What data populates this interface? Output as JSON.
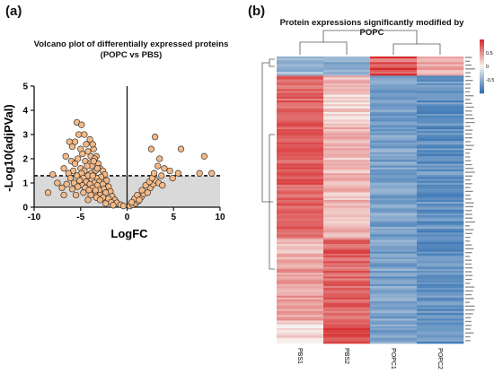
{
  "panel_labels": {
    "a": "(a)",
    "b": "(b)"
  },
  "chart_data": [
    {
      "type": "scatter",
      "title": "Volcano plot of differentially expressed proteins",
      "subtitle": "(POPC vs PBS)",
      "xlabel": "LogFC",
      "ylabel": "-Log10(adjPVal)",
      "xlim": [
        -10,
        10
      ],
      "ylim": [
        0,
        5
      ],
      "xticks": [
        -10,
        -5,
        0,
        5,
        10
      ],
      "yticks": [
        0,
        1,
        2,
        3,
        4,
        5
      ],
      "threshold_y": 1.3,
      "point_color": "#f5b985",
      "point_edge_color": "#333333",
      "nonsignificant_band_color": "#d9d9d9",
      "points": [
        [
          -5.4,
          3.5
        ],
        [
          -4.9,
          3.4
        ],
        [
          -5.2,
          3.0
        ],
        [
          -4.6,
          3.0
        ],
        [
          -6.2,
          2.7
        ],
        [
          -5.6,
          2.7
        ],
        [
          -4.4,
          2.6
        ],
        [
          -3.6,
          2.4
        ],
        [
          -5.9,
          2.5
        ],
        [
          -5.0,
          2.4
        ],
        [
          -4.2,
          2.3
        ],
        [
          -3.3,
          2.1
        ],
        [
          -4.8,
          2.2
        ],
        [
          -6.6,
          2.1
        ],
        [
          -3.9,
          2.1
        ],
        [
          -5.3,
          2.0
        ],
        [
          -3.5,
          2.0
        ],
        [
          -4.5,
          1.9
        ],
        [
          -6.0,
          1.9
        ],
        [
          -3.1,
          1.8
        ],
        [
          -4.0,
          1.8
        ],
        [
          -5.6,
          1.8
        ],
        [
          -3.8,
          1.7
        ],
        [
          -4.3,
          1.7
        ],
        [
          -2.9,
          1.6
        ],
        [
          -5.0,
          1.6
        ],
        [
          -6.8,
          1.6
        ],
        [
          -3.4,
          1.5
        ],
        [
          -4.6,
          1.5
        ],
        [
          -2.6,
          1.5
        ],
        [
          -5.8,
          1.5
        ],
        [
          -3.9,
          1.4
        ],
        [
          -4.9,
          1.4
        ],
        [
          -2.4,
          1.35
        ],
        [
          -6.3,
          1.4
        ],
        [
          -8.0,
          1.35
        ],
        [
          -3.6,
          1.3
        ],
        [
          -4.2,
          1.3
        ],
        [
          -5.4,
          1.3
        ],
        [
          -2.8,
          1.25
        ],
        [
          -3.3,
          1.2
        ],
        [
          -4.7,
          1.2
        ],
        [
          -6.1,
          1.2
        ],
        [
          -3.8,
          1.15
        ],
        [
          -2.2,
          1.1
        ],
        [
          -5.1,
          1.1
        ],
        [
          -4.4,
          1.05
        ],
        [
          -3.0,
          1.05
        ],
        [
          -5.7,
          1.0
        ],
        [
          -3.5,
          1.0
        ],
        [
          -2.6,
          0.95
        ],
        [
          -4.0,
          0.95
        ],
        [
          -6.5,
          0.95
        ],
        [
          -4.8,
          0.9
        ],
        [
          -3.2,
          0.9
        ],
        [
          -2.0,
          0.85
        ],
        [
          -5.3,
          0.85
        ],
        [
          -3.7,
          0.8
        ],
        [
          -4.5,
          0.8
        ],
        [
          -2.5,
          0.75
        ],
        [
          -5.9,
          0.75
        ],
        [
          -3.0,
          0.7
        ],
        [
          -4.1,
          0.7
        ],
        [
          -1.8,
          0.65
        ],
        [
          -3.5,
          0.6
        ],
        [
          -2.3,
          0.6
        ],
        [
          -4.7,
          0.6
        ],
        [
          -2.9,
          0.5
        ],
        [
          -3.9,
          0.5
        ],
        [
          -1.6,
          0.45
        ],
        [
          -2.6,
          0.4
        ],
        [
          -3.3,
          0.4
        ],
        [
          -2.0,
          0.35
        ],
        [
          -1.3,
          0.3
        ],
        [
          -2.9,
          0.3
        ],
        [
          -1.7,
          0.2
        ],
        [
          -1.1,
          0.18
        ],
        [
          -2.3,
          0.15
        ],
        [
          -0.7,
          0.1
        ],
        [
          -1.5,
          0.08
        ],
        [
          -0.4,
          0.05
        ],
        [
          -8.5,
          0.6
        ],
        [
          -7.5,
          1.0
        ],
        [
          -7.0,
          0.8
        ],
        [
          -6.8,
          0.5
        ],
        [
          -5.5,
          0.5
        ],
        [
          -4.2,
          0.3
        ],
        [
          -3.7,
          2.6
        ],
        [
          -4.0,
          2.8
        ],
        [
          -3.6,
          1.9
        ],
        [
          -3.2,
          1.6
        ],
        [
          -3.7,
          1.3
        ],
        [
          -3.4,
          0.7
        ],
        [
          0.3,
          0.05
        ],
        [
          0.6,
          0.1
        ],
        [
          0.9,
          0.15
        ],
        [
          1.2,
          0.25
        ],
        [
          0.8,
          0.35
        ],
        [
          1.5,
          0.4
        ],
        [
          1.1,
          0.5
        ],
        [
          1.8,
          0.55
        ],
        [
          2.2,
          0.6
        ],
        [
          1.6,
          0.7
        ],
        [
          2.5,
          0.8
        ],
        [
          2.0,
          0.9
        ],
        [
          2.8,
          0.95
        ],
        [
          2.4,
          1.05
        ],
        [
          3.1,
          1.1
        ],
        [
          2.7,
          1.2
        ],
        [
          1.3,
          0.3
        ],
        [
          0.5,
          0.2
        ],
        [
          3.4,
          1.0
        ],
        [
          3.7,
          1.3
        ],
        [
          2.9,
          1.4
        ],
        [
          3.3,
          1.7
        ],
        [
          2.6,
          2.4
        ],
        [
          3.0,
          2.9
        ],
        [
          4.0,
          1.6
        ],
        [
          4.6,
          1.5
        ],
        [
          5.5,
          1.4
        ],
        [
          5.8,
          2.4
        ],
        [
          7.8,
          1.4
        ],
        [
          8.3,
          2.1
        ],
        [
          9.1,
          1.4
        ],
        [
          3.8,
          0.9
        ],
        [
          4.9,
          1.2
        ],
        [
          3.5,
          2.0
        ]
      ]
    },
    {
      "type": "heatmap",
      "title": "Protein expressions significantly modified by POPC",
      "columns": [
        "PBS1",
        "PBS2",
        "POPC1",
        "POPC2"
      ],
      "color_scale": {
        "min": -1,
        "max": 1,
        "low_color": "#2b6cb0",
        "mid_color": "#f7f4f0",
        "high_color": "#d6292b"
      },
      "legend_ticks": [
        0.5,
        0,
        -0.5
      ],
      "row_count": 150
    }
  ]
}
